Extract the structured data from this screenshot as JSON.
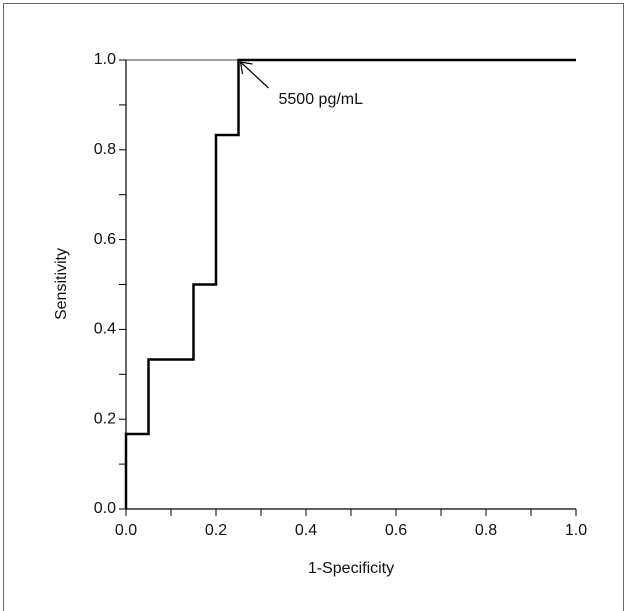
{
  "chart_data": {
    "type": "line",
    "xlabel": "1-Specificity",
    "ylabel": "Sensitivity",
    "series": [
      {
        "color": "#000000",
        "x": [
          0,
          0,
          0.05,
          0.05,
          0.15,
          0.15,
          0.2,
          0.2,
          0.25,
          0.25,
          1.0
        ],
        "values": [
          0,
          0.167,
          0.167,
          0.333,
          0.333,
          0.5,
          0.5,
          0.833,
          0.833,
          1.0,
          1.0
        ]
      }
    ],
    "xlim": [
      0,
      1.0
    ],
    "ylim": [
      0,
      1.0
    ],
    "xticks": [
      {
        "value": 0,
        "label": "0.0"
      },
      0.2,
      0.4,
      0.6,
      0.8,
      {
        "value": 1.0,
        "label": "1.0"
      }
    ],
    "yticks": [
      {
        "value": 0,
        "label": "0.0"
      },
      0.2,
      0.4,
      0.6,
      0.8,
      {
        "value": 1.0,
        "label": "1.0"
      }
    ],
    "xminorticks": [
      0.1,
      0.3,
      0.5,
      0.7,
      0.9
    ],
    "yminorticks": [
      0.1,
      0.3,
      0.5,
      0.7,
      0.9
    ],
    "annotation": {
      "text": "5500 pg/mL",
      "x": 0.25,
      "y": 1.0
    }
  }
}
